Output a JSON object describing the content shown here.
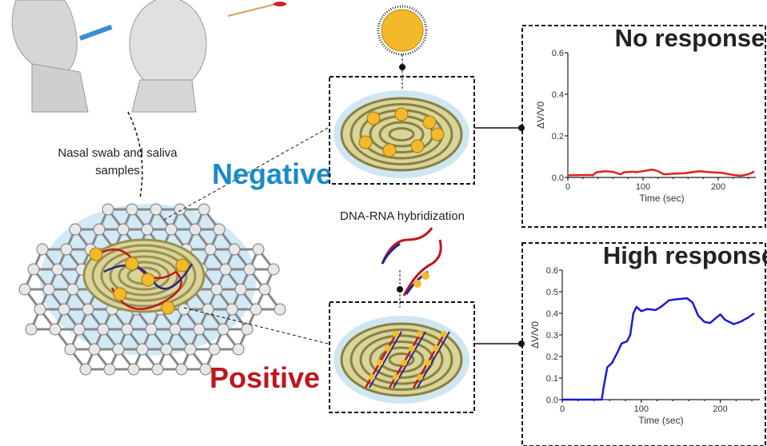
{
  "labels": {
    "samples": [
      "Nasal swab and saliva",
      "samples"
    ],
    "negative": "Negative",
    "positive": "Positive",
    "hybridization": "DNA-RNA hybridization"
  },
  "colors": {
    "negative": "#1a8bc8",
    "positive": "#c0161d",
    "gold": "#f2b92a",
    "graphene": "#e8e8e8",
    "highlight": "#bfe0f2"
  },
  "chart_data": [
    {
      "type": "line",
      "title": "No response",
      "xlabel": "Time (sec)",
      "ylabel": "ΔV/V0",
      "xlim": [
        0,
        250
      ],
      "ylim": [
        0,
        0.6
      ],
      "xticks": [
        "0",
        "100",
        "200"
      ],
      "yticks": [
        "0.0",
        "0.2",
        "0.4",
        "0.6"
      ],
      "grid": false,
      "color": "#e02020",
      "x": [
        0,
        30,
        33,
        38,
        50,
        60,
        70,
        75,
        88,
        90,
        100,
        112,
        120,
        128,
        140,
        155,
        175,
        190,
        205,
        220,
        230,
        240,
        248
      ],
      "y": [
        0.01,
        0.012,
        0.01,
        0.025,
        0.03,
        0.027,
        0.015,
        0.025,
        0.028,
        0.025,
        0.03,
        0.038,
        0.03,
        0.015,
        0.018,
        0.02,
        0.03,
        0.025,
        0.022,
        0.012,
        0.008,
        0.015,
        0.028
      ]
    },
    {
      "type": "line",
      "title": "High response",
      "xlabel": "Time (sec)",
      "ylabel": "ΔV/V0",
      "xlim": [
        0,
        250
      ],
      "ylim": [
        0,
        0.6
      ],
      "xticks": [
        "0",
        "100",
        "200"
      ],
      "yticks": [
        "0.0",
        "0.1",
        "0.2",
        "0.3",
        "0.4",
        "0.5",
        "0.6"
      ],
      "grid": false,
      "color": "#1a1ad6",
      "x": [
        0,
        40,
        50,
        52,
        57,
        63,
        70,
        75,
        82,
        86,
        90,
        94,
        97,
        100,
        108,
        118,
        125,
        135,
        145,
        158,
        165,
        172,
        180,
        187,
        195,
        200,
        206,
        217,
        225,
        235,
        243
      ],
      "y": [
        0,
        0,
        0,
        0.05,
        0.15,
        0.17,
        0.22,
        0.26,
        0.27,
        0.3,
        0.4,
        0.43,
        0.42,
        0.41,
        0.42,
        0.415,
        0.43,
        0.46,
        0.465,
        0.47,
        0.45,
        0.39,
        0.36,
        0.355,
        0.38,
        0.395,
        0.37,
        0.35,
        0.36,
        0.38,
        0.4
      ]
    }
  ]
}
